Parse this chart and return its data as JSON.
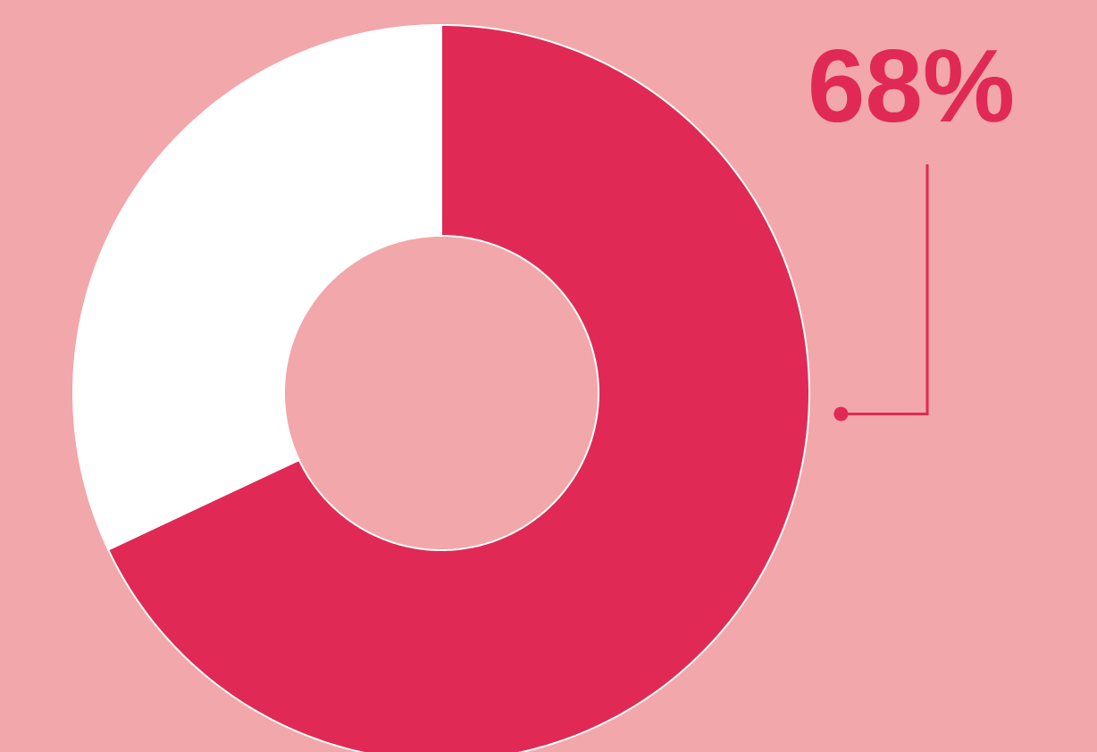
{
  "chart_data": {
    "type": "donut",
    "categories": [
      null,
      null
    ],
    "values": [
      68,
      32
    ],
    "colors": [
      "#e02a55",
      "#ffffff"
    ],
    "value_labels": [
      "68%",
      null
    ]
  }
}
